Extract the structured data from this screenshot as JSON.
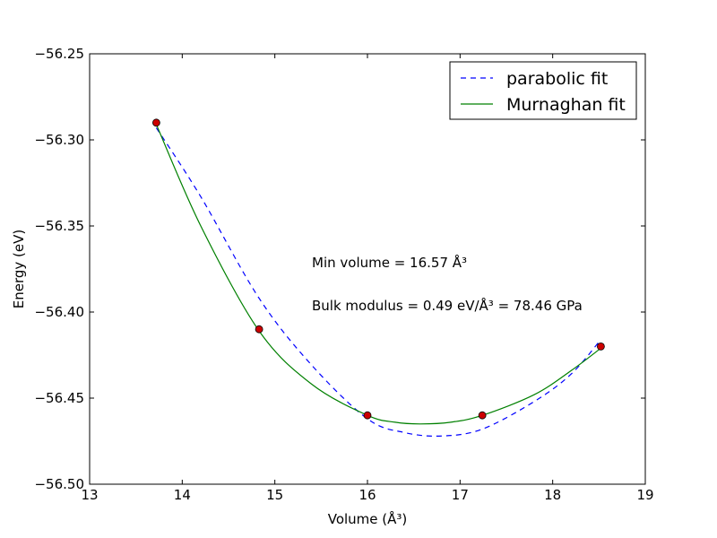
{
  "chart_data": {
    "type": "line",
    "title": "",
    "xlabel": "Volume (Å³)",
    "ylabel": "Energy (eV)",
    "xlim": [
      13,
      19
    ],
    "ylim": [
      -56.5,
      -56.25
    ],
    "x_ticks": [
      13,
      14,
      15,
      16,
      17,
      18,
      19
    ],
    "y_ticks": [
      -56.5,
      -56.45,
      -56.4,
      -56.35,
      -56.3,
      -56.25
    ],
    "x_tick_labels": [
      "13",
      "14",
      "15",
      "16",
      "17",
      "18",
      "19"
    ],
    "y_tick_labels": [
      "−56.50",
      "−56.45",
      "−56.40",
      "−56.35",
      "−56.30",
      "−56.25"
    ],
    "grid": false,
    "legend_position": "top-right",
    "points": {
      "x": [
        13.72,
        14.83,
        16.0,
        17.24,
        18.52
      ],
      "y": [
        -56.29,
        -56.41,
        -56.46,
        -56.46,
        -56.42
      ],
      "color": "#cc0000"
    },
    "series": [
      {
        "name": "parabolic fit",
        "style": "dashed",
        "color": "#0000ff",
        "x": [
          13.72,
          14.2,
          14.83,
          15.4,
          16.0,
          16.4,
          16.8,
          17.24,
          17.8,
          18.2,
          18.52
        ],
        "y": [
          -56.293,
          -56.333,
          -56.392,
          -56.431,
          -56.462,
          -56.47,
          -56.472,
          -56.468,
          -56.452,
          -56.436,
          -56.416
        ]
      },
      {
        "name": "Murnaghan fit",
        "style": "solid",
        "color": "#008000",
        "x": [
          13.72,
          14.2,
          14.83,
          15.4,
          16.0,
          16.3,
          16.57,
          16.9,
          17.24,
          17.8,
          18.2,
          18.52
        ],
        "y": [
          -56.291,
          -56.35,
          -56.411,
          -56.442,
          -56.46,
          -56.464,
          -56.465,
          -56.464,
          -56.46,
          -56.448,
          -56.434,
          -56.421
        ]
      }
    ],
    "annotations": [
      "Min volume = 16.57 Å³",
      "Bulk modulus = 0.49 eV/Å³  = 78.46 GPa"
    ]
  }
}
